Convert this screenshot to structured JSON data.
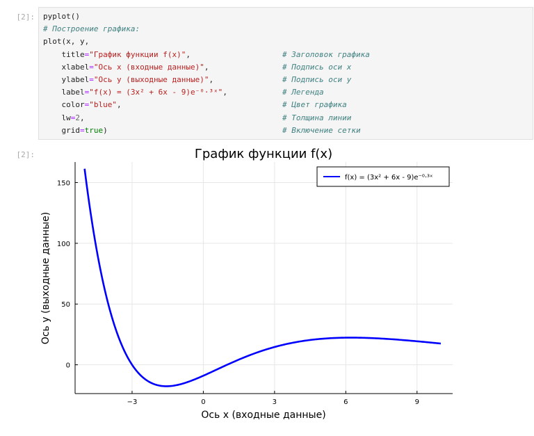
{
  "input_cell": {
    "prompt": "[2]:",
    "lines": [
      {
        "code": "pyplot()",
        "comment": ""
      },
      {
        "code": "",
        "comment_full": "# Построение графика:"
      },
      {
        "code": "plot(x, y,",
        "comment": ""
      },
      {
        "indent": "    ",
        "key": "title",
        "value": "\"График функции f(x)\"",
        "tail": ",",
        "comment": "# Заголовок графика"
      },
      {
        "indent": "    ",
        "key": "xlabel",
        "value": "\"Ось x (входные данные)\"",
        "tail": ",",
        "comment": "# Подпись оси x"
      },
      {
        "indent": "    ",
        "key": "ylabel",
        "value": "\"Ось y (выходные данные)\"",
        "tail": ",",
        "comment": "# Подпись оси y"
      },
      {
        "indent": "    ",
        "key": "label",
        "value": "\"f(x) = (3x² + 6x - 9)e⁻⁰·³ˣ\"",
        "tail": ",",
        "comment": "# Легенда"
      },
      {
        "indent": "    ",
        "key": "color",
        "value": "\"blue\"",
        "tail": ",",
        "comment": "# Цвет графика"
      },
      {
        "indent": "    ",
        "key": "lw",
        "value": "2",
        "tail": ",",
        "comment": "# Толщина линии"
      },
      {
        "indent": "    ",
        "key": "grid",
        "value": "true",
        "tail": ")",
        "comment": "# Включение сетки"
      }
    ]
  },
  "output_cell": {
    "prompt": "[2]:"
  },
  "chart_data": {
    "type": "line",
    "title": "График функции f(x)",
    "xlabel": "Ось x (входные данные)",
    "ylabel": "Ось y (выходные данные)",
    "xlim": [
      -5.4,
      10.5
    ],
    "ylim": [
      -23.7,
      166.9
    ],
    "x_ticks": [
      -3,
      0,
      3,
      6,
      9
    ],
    "x_tick_labels": [
      "−3",
      "0",
      "3",
      "6",
      "9"
    ],
    "y_ticks": [
      0,
      50,
      100,
      150
    ],
    "y_tick_labels": [
      "0",
      "50",
      "100",
      "150"
    ],
    "grid": true,
    "legend_position": "top-right",
    "series": [
      {
        "name": "f(x) = (3x² + 6x - 9)e⁻⁰·³ˣ",
        "color": "#0000ff",
        "function": "(3x^2+6x-9)*exp(-0.3x)",
        "x_range": [
          -5,
          10
        ],
        "samples": 300
      }
    ]
  }
}
